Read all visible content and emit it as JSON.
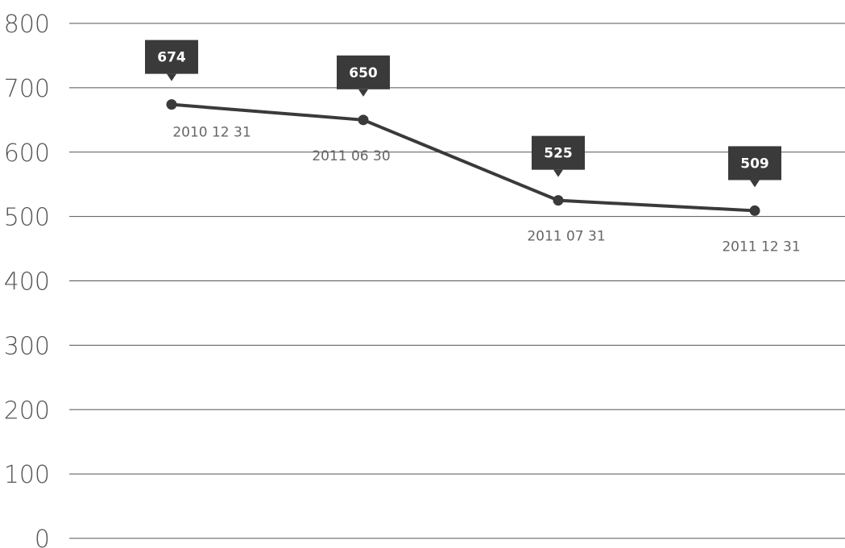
{
  "chart_data": {
    "type": "line",
    "title": "",
    "xlabel": "",
    "ylabel": "",
    "ylim": [
      0,
      800
    ],
    "yticks": [
      0,
      100,
      200,
      300,
      400,
      500,
      600,
      700,
      800
    ],
    "grid": true,
    "categories": [
      "2010 12 31",
      "2011 06 30",
      "2011 07 31",
      "2011 12 31"
    ],
    "series": [
      {
        "values": [
          674,
          650,
          525,
          509
        ],
        "data_labels": [
          "674",
          "650",
          "525",
          "509"
        ]
      }
    ],
    "colors": {
      "line": "#3a3a3a",
      "callout": "#3a3a3a",
      "grid": "#555555"
    }
  }
}
